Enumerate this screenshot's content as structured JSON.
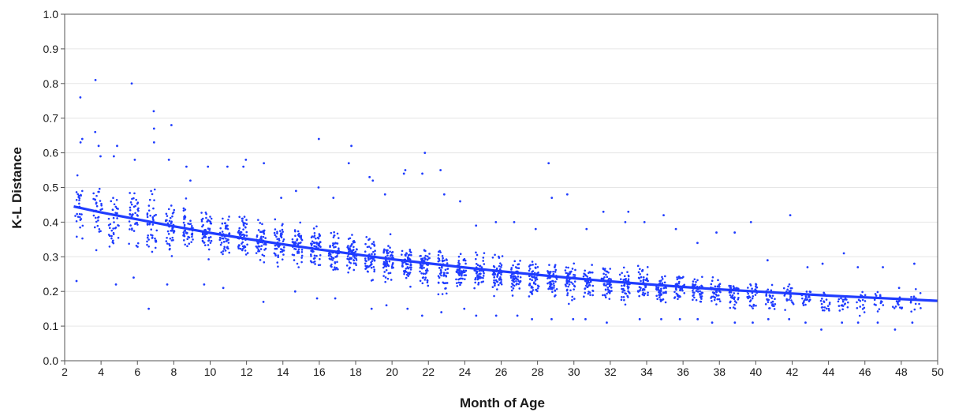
{
  "chart_data": {
    "type": "scatter",
    "title": "",
    "xlabel": "Month of Age",
    "ylabel": "K-L Distance",
    "xlim": [
      2,
      50
    ],
    "ylim": [
      0.0,
      1.0
    ],
    "x_ticks": [
      "2",
      "4",
      "6",
      "8",
      "10",
      "12",
      "14",
      "16",
      "18",
      "20",
      "22",
      "24",
      "26",
      "28",
      "30",
      "32",
      "34",
      "36",
      "38",
      "40",
      "42",
      "44",
      "46",
      "48",
      "50"
    ],
    "y_ticks": [
      "0.0",
      "0.1",
      "0.2",
      "0.3",
      "0.4",
      "0.5",
      "0.6",
      "0.7",
      "0.8",
      "0.9",
      "1.0"
    ],
    "grid": "horizontal",
    "legend": "none",
    "point_color": "#1f3cff",
    "line_color": "#1f3cff",
    "fit_curve": {
      "x": [
        2.5,
        4,
        6,
        8,
        10,
        12,
        14,
        16,
        18,
        20,
        22,
        24,
        26,
        28,
        30,
        32,
        34,
        36,
        38,
        40,
        42,
        44,
        46,
        48,
        50
      ],
      "y": [
        0.445,
        0.428,
        0.408,
        0.388,
        0.369,
        0.352,
        0.336,
        0.321,
        0.307,
        0.293,
        0.281,
        0.269,
        0.258,
        0.248,
        0.238,
        0.229,
        0.221,
        0.213,
        0.206,
        0.2,
        0.194,
        0.188,
        0.183,
        0.178,
        0.173
      ]
    },
    "clusters": [
      {
        "x": 2.8,
        "count": 26,
        "mean": 0.43,
        "spread": 0.12,
        "outliers": [
          0.76,
          0.64,
          0.63,
          0.23
        ]
      },
      {
        "x": 3.8,
        "count": 32,
        "mean": 0.43,
        "spread": 0.11,
        "outliers": [
          0.81,
          0.66,
          0.62,
          0.59
        ]
      },
      {
        "x": 4.7,
        "count": 36,
        "mean": 0.4,
        "spread": 0.09,
        "outliers": [
          0.62,
          0.59,
          0.22
        ]
      },
      {
        "x": 5.8,
        "count": 40,
        "mean": 0.41,
        "spread": 0.1,
        "outliers": [
          0.8,
          0.58,
          0.24
        ]
      },
      {
        "x": 6.8,
        "count": 44,
        "mean": 0.4,
        "spread": 0.1,
        "outliers": [
          0.72,
          0.67,
          0.63,
          0.15
        ]
      },
      {
        "x": 7.8,
        "count": 44,
        "mean": 0.38,
        "spread": 0.09,
        "outliers": [
          0.68,
          0.58,
          0.22
        ]
      },
      {
        "x": 8.8,
        "count": 48,
        "mean": 0.38,
        "spread": 0.08,
        "outliers": [
          0.56,
          0.52
        ]
      },
      {
        "x": 9.8,
        "count": 50,
        "mean": 0.37,
        "spread": 0.08,
        "outliers": [
          0.56,
          0.22
        ]
      },
      {
        "x": 10.8,
        "count": 50,
        "mean": 0.36,
        "spread": 0.08,
        "outliers": [
          0.56,
          0.21
        ]
      },
      {
        "x": 11.8,
        "count": 52,
        "mean": 0.36,
        "spread": 0.08,
        "outliers": [
          0.58,
          0.56
        ]
      },
      {
        "x": 12.8,
        "count": 52,
        "mean": 0.34,
        "spread": 0.08,
        "outliers": [
          0.57,
          0.17
        ]
      },
      {
        "x": 13.8,
        "count": 54,
        "mean": 0.33,
        "spread": 0.08,
        "outliers": [
          0.47
        ]
      },
      {
        "x": 14.8,
        "count": 56,
        "mean": 0.33,
        "spread": 0.08,
        "outliers": [
          0.49,
          0.2
        ]
      },
      {
        "x": 15.8,
        "count": 58,
        "mean": 0.33,
        "spread": 0.08,
        "outliers": [
          0.64,
          0.5,
          0.18
        ]
      },
      {
        "x": 16.8,
        "count": 58,
        "mean": 0.31,
        "spread": 0.07,
        "outliers": [
          0.47,
          0.18
        ]
      },
      {
        "x": 17.8,
        "count": 58,
        "mean": 0.31,
        "spread": 0.07,
        "outliers": [
          0.62,
          0.57
        ]
      },
      {
        "x": 18.8,
        "count": 58,
        "mean": 0.3,
        "spread": 0.07,
        "outliers": [
          0.53,
          0.52,
          0.15
        ]
      },
      {
        "x": 19.8,
        "count": 60,
        "mean": 0.29,
        "spread": 0.07,
        "outliers": [
          0.48,
          0.16
        ]
      },
      {
        "x": 20.8,
        "count": 60,
        "mean": 0.28,
        "spread": 0.07,
        "outliers": [
          0.55,
          0.54,
          0.15
        ]
      },
      {
        "x": 21.8,
        "count": 60,
        "mean": 0.27,
        "spread": 0.07,
        "outliers": [
          0.6,
          0.54,
          0.13
        ]
      },
      {
        "x": 22.8,
        "count": 58,
        "mean": 0.26,
        "spread": 0.07,
        "outliers": [
          0.55,
          0.48,
          0.14
        ]
      },
      {
        "x": 23.8,
        "count": 58,
        "mean": 0.26,
        "spread": 0.06,
        "outliers": [
          0.46,
          0.15
        ]
      },
      {
        "x": 24.8,
        "count": 56,
        "mean": 0.25,
        "spread": 0.06,
        "outliers": [
          0.39,
          0.13
        ]
      },
      {
        "x": 25.8,
        "count": 58,
        "mean": 0.25,
        "spread": 0.06,
        "outliers": [
          0.4,
          0.13
        ]
      },
      {
        "x": 26.8,
        "count": 56,
        "mean": 0.24,
        "spread": 0.06,
        "outliers": [
          0.4,
          0.13
        ]
      },
      {
        "x": 27.8,
        "count": 54,
        "mean": 0.24,
        "spread": 0.06,
        "outliers": [
          0.38,
          0.12
        ]
      },
      {
        "x": 28.8,
        "count": 54,
        "mean": 0.24,
        "spread": 0.06,
        "outliers": [
          0.57,
          0.47,
          0.12
        ]
      },
      {
        "x": 29.8,
        "count": 52,
        "mean": 0.23,
        "spread": 0.06,
        "outliers": [
          0.48,
          0.12
        ]
      },
      {
        "x": 30.8,
        "count": 50,
        "mean": 0.22,
        "spread": 0.06,
        "outliers": [
          0.38,
          0.12
        ]
      },
      {
        "x": 31.8,
        "count": 50,
        "mean": 0.22,
        "spread": 0.06,
        "outliers": [
          0.43,
          0.11
        ]
      },
      {
        "x": 32.8,
        "count": 50,
        "mean": 0.22,
        "spread": 0.06,
        "outliers": [
          0.43,
          0.4
        ]
      },
      {
        "x": 33.8,
        "count": 48,
        "mean": 0.22,
        "spread": 0.06,
        "outliers": [
          0.4,
          0.12
        ]
      },
      {
        "x": 34.8,
        "count": 46,
        "mean": 0.21,
        "spread": 0.05,
        "outliers": [
          0.42,
          0.12
        ]
      },
      {
        "x": 35.8,
        "count": 44,
        "mean": 0.21,
        "spread": 0.05,
        "outliers": [
          0.38,
          0.12
        ]
      },
      {
        "x": 36.8,
        "count": 42,
        "mean": 0.2,
        "spread": 0.05,
        "outliers": [
          0.34,
          0.12
        ]
      },
      {
        "x": 37.8,
        "count": 40,
        "mean": 0.2,
        "spread": 0.05,
        "outliers": [
          0.37,
          0.11
        ]
      },
      {
        "x": 38.8,
        "count": 38,
        "mean": 0.19,
        "spread": 0.05,
        "outliers": [
          0.37,
          0.11
        ]
      },
      {
        "x": 39.8,
        "count": 36,
        "mean": 0.19,
        "spread": 0.05,
        "outliers": [
          0.4,
          0.11
        ]
      },
      {
        "x": 40.8,
        "count": 30,
        "mean": 0.18,
        "spread": 0.05,
        "outliers": [
          0.29,
          0.12
        ]
      },
      {
        "x": 41.8,
        "count": 28,
        "mean": 0.19,
        "spread": 0.05,
        "outliers": [
          0.42,
          0.12
        ]
      },
      {
        "x": 42.8,
        "count": 22,
        "mean": 0.18,
        "spread": 0.04,
        "outliers": [
          0.27,
          0.11
        ]
      },
      {
        "x": 43.8,
        "count": 20,
        "mean": 0.17,
        "spread": 0.04,
        "outliers": [
          0.28,
          0.09
        ]
      },
      {
        "x": 44.8,
        "count": 18,
        "mean": 0.17,
        "spread": 0.04,
        "outliers": [
          0.31,
          0.11
        ]
      },
      {
        "x": 45.8,
        "count": 16,
        "mean": 0.17,
        "spread": 0.04,
        "outliers": [
          0.27,
          0.11
        ]
      },
      {
        "x": 46.8,
        "count": 14,
        "mean": 0.17,
        "spread": 0.04,
        "outliers": [
          0.27,
          0.11
        ]
      },
      {
        "x": 47.8,
        "count": 14,
        "mean": 0.16,
        "spread": 0.04,
        "outliers": [
          0.21,
          0.09
        ]
      },
      {
        "x": 48.8,
        "count": 14,
        "mean": 0.17,
        "spread": 0.04,
        "outliers": [
          0.28,
          0.11
        ]
      }
    ]
  }
}
